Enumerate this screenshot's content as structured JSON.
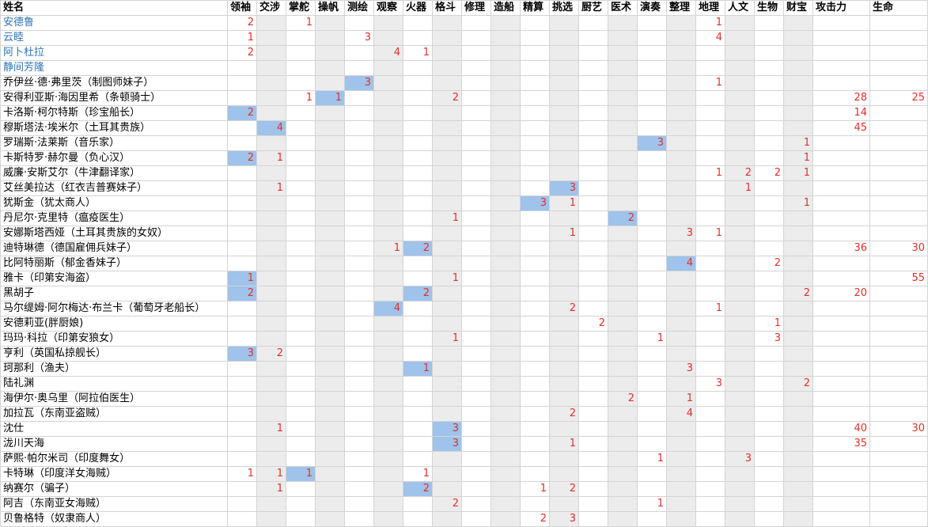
{
  "columns": [
    "姓名",
    "领袖",
    "交涉",
    "掌舵",
    "操帆",
    "测绘",
    "观察",
    "火器",
    "格斗",
    "修理",
    "造船",
    "精算",
    "挑选",
    "厨艺",
    "医术",
    "演奏",
    "整理",
    "地理",
    "人文",
    "生物",
    "财宝",
    "攻击力",
    "生命"
  ],
  "colors": {
    "text_value": "#e0302b",
    "link": "#2e75b6",
    "gray_band": "#ececec",
    "highlight": "#9fc3eb",
    "grid_line": "#d4d4d4"
  },
  "rows": [
    {
      "name": "安德鲁",
      "link": true,
      "cells": [
        "2",
        "",
        "1",
        "",
        "",
        "",
        "",
        "",
        "",
        "",
        "",
        "",
        "",
        "",
        "",
        "",
        "1",
        "",
        "",
        "",
        "",
        ""
      ]
    },
    {
      "name": "云睦",
      "link": true,
      "cells": [
        "1",
        "",
        "",
        "",
        "3",
        "",
        "",
        "",
        "",
        "",
        "",
        "",
        "",
        "",
        "",
        "",
        "4",
        "",
        "",
        "",
        "",
        ""
      ]
    },
    {
      "name": "阿卜杜拉",
      "link": true,
      "cells": [
        "2",
        "",
        "",
        "",
        "",
        "4",
        "1",
        "",
        "",
        "",
        "",
        "",
        "",
        "",
        "",
        "",
        "",
        "",
        "",
        "",
        "",
        ""
      ]
    },
    {
      "name": "静间芳隆",
      "link": true,
      "cells": [
        "",
        "",
        "",
        "",
        "",
        "",
        "",
        "",
        "",
        "",
        "",
        "",
        "",
        "",
        "",
        "",
        "",
        "",
        "",
        "",
        "",
        ""
      ]
    },
    {
      "name": "乔伊丝·德·弗里茨（制图师妹子）",
      "cells": [
        "",
        "",
        "",
        "",
        "3",
        "",
        "",
        "",
        "",
        "",
        "",
        "",
        "",
        "",
        "",
        "",
        "1",
        "",
        "",
        "",
        "",
        ""
      ]
    },
    {
      "name": "安得利亚斯·海因里希（条顿骑士）",
      "cells": [
        "",
        "",
        "1",
        "1",
        "",
        "",
        "",
        "2",
        "",
        "",
        "",
        "",
        "",
        "",
        "",
        "",
        "",
        "",
        "",
        "",
        "28",
        "25"
      ]
    },
    {
      "name": "卡洛斯·柯尔特斯（珍宝船长）",
      "cells": [
        "2",
        "",
        "",
        "",
        "",
        "",
        "",
        "",
        "",
        "",
        "",
        "",
        "",
        "",
        "",
        "",
        "",
        "",
        "",
        "",
        "14",
        ""
      ]
    },
    {
      "name": "穆斯塔法·埃米尔（土耳其贵族）",
      "cells": [
        "",
        "4",
        "",
        "",
        "",
        "",
        "",
        "",
        "",
        "",
        "",
        "",
        "",
        "",
        "",
        "",
        "",
        "",
        "",
        "",
        "45",
        ""
      ]
    },
    {
      "name": "罗瑞斯·法莱斯（音乐家）",
      "cells": [
        "",
        "",
        "",
        "",
        "",
        "",
        "",
        "",
        "",
        "",
        "",
        "",
        "",
        "",
        "3",
        "",
        "",
        "",
        "",
        "1",
        "",
        ""
      ]
    },
    {
      "name": "卡斯特罗·赫尔曼（负心汉）",
      "cells": [
        "2",
        "1",
        "",
        "",
        "",
        "",
        "",
        "",
        "",
        "",
        "",
        "",
        "",
        "",
        "",
        "",
        "",
        "",
        "",
        "1",
        "",
        ""
      ]
    },
    {
      "name": "威廉·安斯艾尔（牛津翻译家）",
      "cells": [
        "",
        "",
        "",
        "",
        "",
        "",
        "",
        "",
        "",
        "",
        "",
        "",
        "",
        "",
        "",
        "",
        "1",
        "2",
        "2",
        "1",
        "",
        ""
      ]
    },
    {
      "name": "艾丝美拉达（红衣吉普赛妹子）",
      "cells": [
        "",
        "1",
        "",
        "",
        "",
        "",
        "",
        "",
        "",
        "",
        "",
        "3",
        "",
        "",
        "",
        "",
        "",
        "1",
        "",
        "",
        "",
        ""
      ]
    },
    {
      "name": "犹斯金（犹太商人）",
      "cells": [
        "",
        "",
        "",
        "",
        "",
        "",
        "",
        "",
        "",
        "",
        "3",
        "1",
        "",
        "",
        "",
        "",
        "",
        "",
        "",
        "1",
        "",
        ""
      ]
    },
    {
      "name": "丹尼尔·克里特（瘟疫医生）",
      "cells": [
        "",
        "",
        "",
        "",
        "",
        "",
        "",
        "1",
        "",
        "",
        "",
        "",
        "",
        "2",
        "",
        "",
        "",
        "",
        "",
        "",
        "",
        ""
      ]
    },
    {
      "name": "安娜斯塔西娅（土耳其贵族的女奴）",
      "cells": [
        "",
        "",
        "",
        "",
        "",
        "",
        "",
        "",
        "",
        "",
        "",
        "1",
        "",
        "",
        "",
        "3",
        "1",
        "",
        "",
        "",
        "",
        ""
      ]
    },
    {
      "name": "迪特琳德（德国雇佣兵妹子）",
      "cells": [
        "",
        "",
        "",
        "",
        "",
        "1",
        "2",
        "",
        "",
        "",
        "",
        "",
        "",
        "",
        "",
        "",
        "",
        "",
        "",
        "",
        "36",
        "30"
      ]
    },
    {
      "name": "比阿特丽斯（郁金香妹子）",
      "cells": [
        "",
        "",
        "",
        "",
        "",
        "",
        "",
        "",
        "",
        "",
        "",
        "",
        "",
        "",
        "",
        "4",
        "",
        "",
        "2",
        "",
        "",
        ""
      ]
    },
    {
      "name": "雅卡（印第安海盗）",
      "cells": [
        "1",
        "",
        "",
        "",
        "",
        "",
        "",
        "1",
        "",
        "",
        "",
        "",
        "",
        "",
        "",
        "",
        "",
        "",
        "",
        "",
        "",
        "55"
      ]
    },
    {
      "name": "黑胡子",
      "cells": [
        "2",
        "",
        "",
        "",
        "",
        "",
        "2",
        "",
        "",
        "",
        "",
        "",
        "",
        "",
        "",
        "",
        "",
        "",
        "",
        "2",
        "20",
        ""
      ]
    },
    {
      "name": "马尔缇姆·阿尔梅达·布兰卡（葡萄牙老船长）",
      "cells": [
        "",
        "",
        "",
        "",
        "",
        "4",
        "",
        "",
        "",
        "",
        "",
        "2",
        "",
        "",
        "",
        "",
        "1",
        "",
        "",
        "",
        "",
        ""
      ]
    },
    {
      "name": "安德莉亚(胖厨娘)",
      "cells": [
        "",
        "",
        "",
        "",
        "",
        "",
        "",
        "",
        "",
        "",
        "",
        "",
        "2",
        "",
        "",
        "",
        "",
        "",
        "1",
        "",
        "",
        ""
      ]
    },
    {
      "name": "玛玛·科拉（印第安狼女）",
      "cells": [
        "",
        "",
        "",
        "",
        "",
        "",
        "",
        "1",
        "",
        "",
        "",
        "",
        "",
        "",
        "1",
        "",
        "",
        "",
        "3",
        "",
        "",
        ""
      ]
    },
    {
      "name": "亨利（英国私掠舰长）",
      "cells": [
        "3",
        "2",
        "",
        "",
        "",
        "",
        "",
        "",
        "",
        "",
        "",
        "",
        "",
        "",
        "",
        "",
        "",
        "",
        "",
        "",
        "",
        ""
      ]
    },
    {
      "name": "珂那利（渔夫）",
      "cells": [
        "",
        "",
        "",
        "",
        "",
        "",
        "1",
        "",
        "",
        "",
        "",
        "",
        "",
        "",
        "",
        "3",
        "",
        "",
        "",
        "",
        "",
        ""
      ]
    },
    {
      "name": "陆礼渊",
      "cells": [
        "",
        "",
        "",
        "",
        "",
        "",
        "",
        "",
        "",
        "",
        "",
        "",
        "",
        "",
        "",
        "",
        "3",
        "",
        "",
        "2",
        "",
        ""
      ]
    },
    {
      "name": "海伊尔·奥乌里（阿拉伯医生）",
      "cells": [
        "",
        "",
        "",
        "",
        "",
        "",
        "",
        "",
        "",
        "",
        "",
        "",
        "",
        "2",
        "",
        "1",
        "",
        "",
        "",
        "",
        "",
        ""
      ]
    },
    {
      "name": "加拉瓦（东南亚盗贼）",
      "cells": [
        "",
        "",
        "",
        "",
        "",
        "",
        "",
        "",
        "",
        "",
        "",
        "2",
        "",
        "",
        "",
        "4",
        "",
        "",
        "",
        "",
        "",
        ""
      ]
    },
    {
      "name": "沈仕",
      "cells": [
        "",
        "1",
        "",
        "",
        "",
        "",
        "",
        "3",
        "",
        "",
        "",
        "",
        "",
        "",
        "",
        "",
        "",
        "",
        "",
        "",
        "40",
        "30"
      ]
    },
    {
      "name": "泷川天海",
      "cells": [
        "",
        "",
        "",
        "",
        "",
        "",
        "",
        "3",
        "",
        "",
        "",
        "1",
        "",
        "",
        "",
        "",
        "",
        "",
        "",
        "",
        "35",
        ""
      ]
    },
    {
      "name": "萨熙·帕尔米司（印度舞女）",
      "cells": [
        "",
        "",
        "",
        "",
        "",
        "",
        "",
        "",
        "",
        "",
        "",
        "",
        "",
        "",
        "1",
        "",
        "",
        "3",
        "",
        "",
        "",
        ""
      ]
    },
    {
      "name": "卡特琳（印度洋女海贼）",
      "cells": [
        "1",
        "1",
        "1",
        "",
        "",
        "",
        "1",
        "",
        "",
        "",
        "",
        "",
        "",
        "",
        "",
        "",
        "",
        "",
        "",
        "",
        "",
        ""
      ]
    },
    {
      "name": "纳赛尔（骗子）",
      "cells": [
        "",
        "1",
        "",
        "",
        "",
        "",
        "2",
        "",
        "",
        "",
        "1",
        "2",
        "",
        "",
        "",
        "",
        "",
        "",
        "",
        "",
        "",
        ""
      ]
    },
    {
      "name": "阿吉（东南亚女海贼）",
      "cells": [
        "",
        "",
        "",
        "",
        "",
        "",
        "",
        "2",
        "",
        "",
        "",
        "",
        "",
        "",
        "1",
        "",
        "",
        "",
        "",
        "",
        "",
        ""
      ]
    },
    {
      "name": "贝鲁格特（奴隶商人）",
      "cells": [
        "",
        "",
        "",
        "",
        "",
        "",
        "",
        "",
        "",
        "",
        "2",
        "3",
        "",
        "",
        "",
        "",
        "",
        "",
        "",
        "",
        "",
        ""
      ]
    }
  ]
}
